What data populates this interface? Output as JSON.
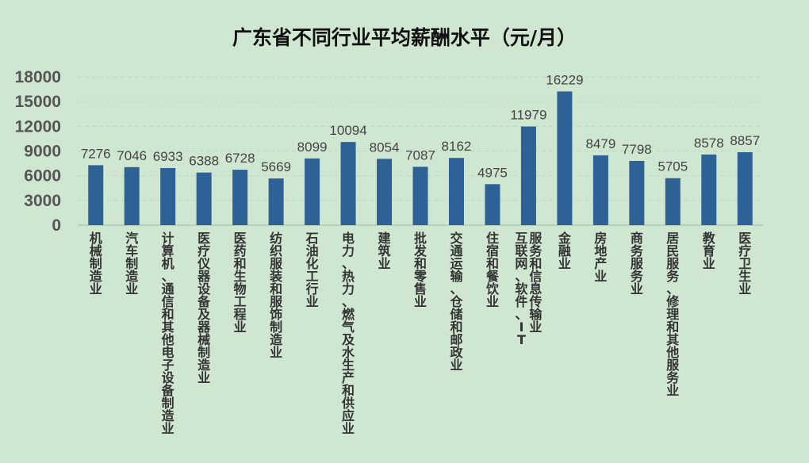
{
  "chart_data": {
    "type": "bar",
    "title": "广东省不同行业平均薪酬水平（元/月）",
    "categories": [
      "机械制造业",
      "汽车制造业",
      "计算机、通信和其他电子设备制造业",
      "医疗仪器设备及器械制造业",
      "医药和生物工程业",
      "纺织服装和服饰制造业",
      "石油化工行业",
      "电力、热力、燃气及水生产和供应业",
      "建筑业",
      "批发和零售业",
      "交通运输、仓储和邮政业",
      "住宿和餐饮业",
      "互联网、软件、IT服务和信息传输业",
      "金融业",
      "房地产业",
      "商务服务业",
      "居民服务、修理和其他服务业",
      "教育业",
      "医疗卫生业"
    ],
    "values": [
      7276,
      7046,
      6933,
      6388,
      6728,
      5669,
      8099,
      10094,
      8054,
      7087,
      8162,
      4975,
      11979,
      16229,
      8479,
      7798,
      5705,
      8578,
      8857
    ],
    "data_labels": [
      "7276",
      "7046",
      "6933",
      "6388",
      "6728",
      "5669",
      "8099",
      "10094",
      "8054",
      "7087",
      "8162",
      "4975",
      "11979",
      "16229",
      "8479",
      "7798",
      "5705",
      "8578",
      "8857"
    ],
    "ylim": [
      0,
      18000
    ],
    "yticks": [
      "0",
      "3000",
      "6000",
      "9000",
      "12000",
      "15000",
      "18000"
    ],
    "grid": true,
    "legend": "none",
    "colors": {
      "bar": "#2e6296",
      "background": "#cfe6d1"
    }
  }
}
